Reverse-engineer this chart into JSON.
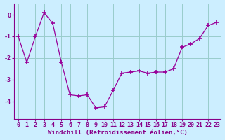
{
  "x": [
    0,
    1,
    2,
    3,
    4,
    5,
    6,
    7,
    8,
    9,
    10,
    11,
    12,
    13,
    14,
    15,
    16,
    17,
    18,
    19,
    20,
    21,
    22,
    23
  ],
  "y": [
    -1.0,
    -2.2,
    -1.0,
    0.1,
    -0.4,
    -2.2,
    -3.7,
    -3.75,
    -3.7,
    -4.3,
    -4.25,
    -3.5,
    -2.7,
    -2.65,
    -2.6,
    -2.7,
    -2.65,
    -2.65,
    -2.5,
    -1.5,
    -1.35,
    -1.1,
    -0.5,
    -0.35
  ],
  "line_color": "#990099",
  "marker": "+",
  "marker_size": 5,
  "marker_lw": 1.2,
  "bg_color": "#cceeff",
  "grid_color": "#99cccc",
  "text_color": "#880088",
  "xlabel": "Windchill (Refroidissement éolien,°C)",
  "xlabel_fontsize": 6.5,
  "tick_fontsize": 6.0,
  "ylim": [
    -4.8,
    0.5
  ],
  "xlim": [
    -0.5,
    23.5
  ],
  "yticks": [
    0,
    -1,
    -2,
    -3,
    -4
  ],
  "xticks": [
    0,
    1,
    2,
    3,
    4,
    5,
    6,
    7,
    8,
    9,
    10,
    11,
    12,
    13,
    14,
    15,
    16,
    17,
    18,
    19,
    20,
    21,
    22,
    23
  ]
}
